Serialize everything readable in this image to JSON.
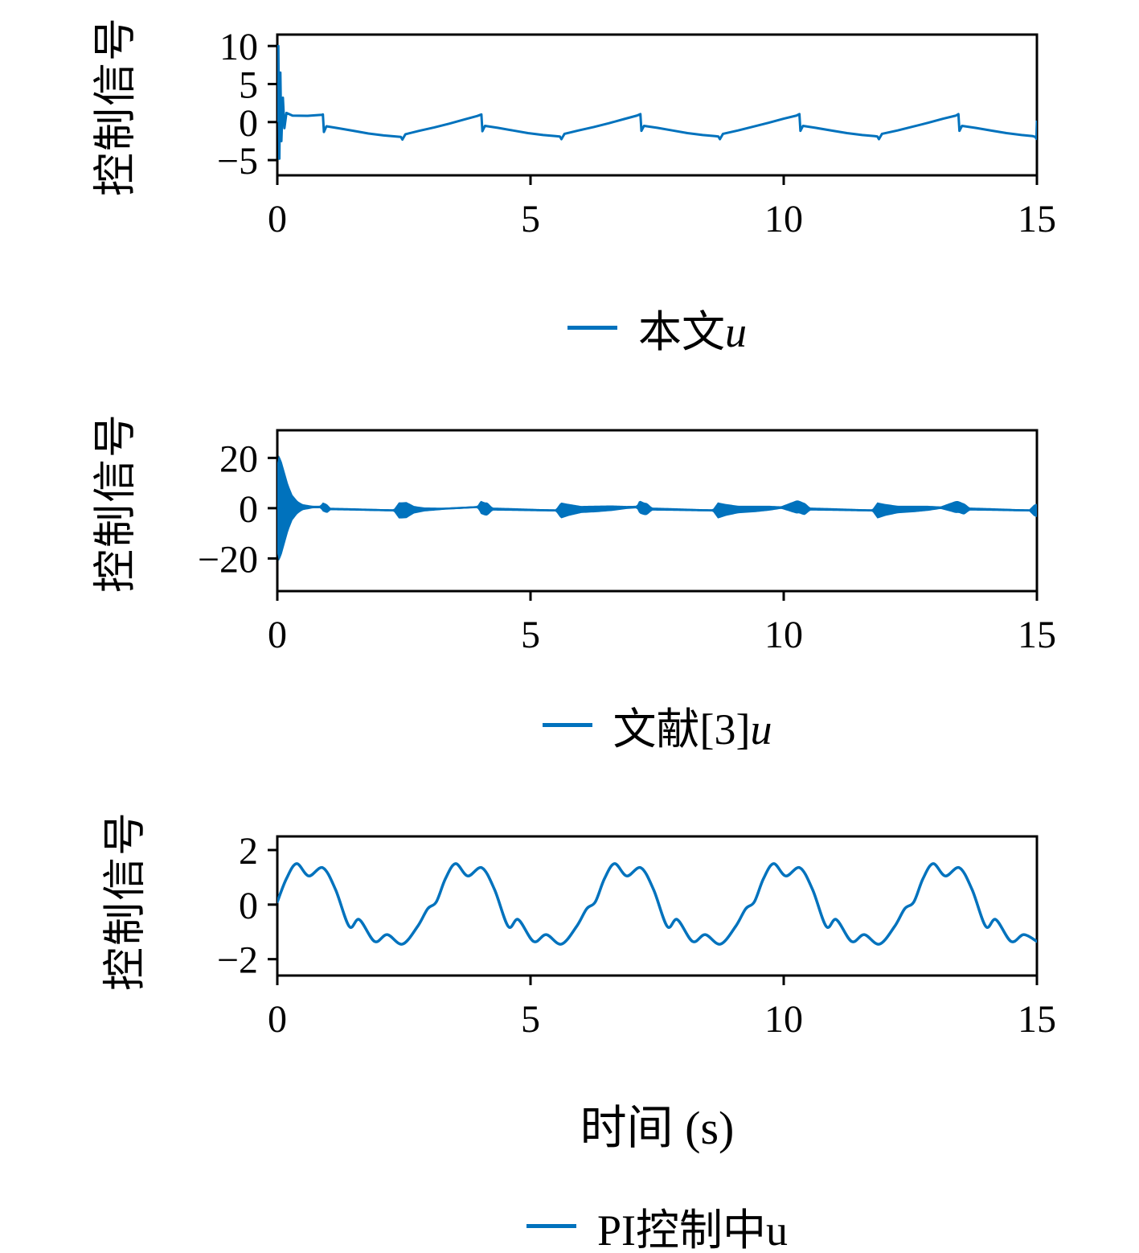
{
  "figure": {
    "background": "#ffffff",
    "accent_color": "#0072BD",
    "axis_color": "#000000",
    "xlabel": "时间 (s)"
  },
  "legends": [
    {
      "prefix": "本文",
      "math": "u"
    },
    {
      "prefix": "文献[3]",
      "math": "u"
    },
    {
      "prefix": "PI控制中u",
      "math": ""
    }
  ],
  "chart_data": [
    {
      "type": "line",
      "ylabel": "控制信号",
      "xlabel": "",
      "xlim": [
        0,
        15
      ],
      "ylim": [
        -7,
        11.5
      ],
      "xticks": [
        0,
        5,
        10,
        15
      ],
      "yticks": [
        10,
        5,
        0,
        -5
      ],
      "grid": false,
      "legend": "本文u",
      "legend_position": "below",
      "series": [
        {
          "name": "本文u",
          "color": "#0072BD",
          "points": [
            [
              0,
              0
            ],
            [
              0.02,
              10
            ],
            [
              0.04,
              -4.8
            ],
            [
              0.06,
              6.5
            ],
            [
              0.08,
              -2.5
            ],
            [
              0.11,
              3.2
            ],
            [
              0.14,
              -0.8
            ],
            [
              0.18,
              1.2
            ],
            [
              0.3,
              0.85
            ],
            [
              0.6,
              0.82
            ],
            [
              0.88,
              0.95
            ],
            [
              0.9,
              1.0
            ],
            [
              0.92,
              -1.3
            ],
            [
              0.97,
              -0.55
            ],
            [
              1.2,
              -0.8
            ],
            [
              1.5,
              -1.15
            ],
            [
              1.8,
              -1.5
            ],
            [
              2.1,
              -1.75
            ],
            [
              2.35,
              -1.9
            ],
            [
              2.44,
              -1.95
            ],
            [
              2.47,
              -2.3
            ],
            [
              2.53,
              -1.6
            ],
            [
              2.8,
              -1.15
            ],
            [
              3.1,
              -0.7
            ],
            [
              3.4,
              -0.2
            ],
            [
              3.7,
              0.35
            ],
            [
              3.95,
              0.8
            ],
            [
              4.03,
              1.0
            ],
            [
              4.05,
              -1.2
            ],
            [
              4.1,
              -0.5
            ],
            [
              4.35,
              -0.75
            ],
            [
              4.65,
              -1.1
            ],
            [
              4.95,
              -1.45
            ],
            [
              5.25,
              -1.7
            ],
            [
              5.5,
              -1.85
            ],
            [
              5.58,
              -1.9
            ],
            [
              5.61,
              -2.25
            ],
            [
              5.67,
              -1.55
            ],
            [
              5.95,
              -1.1
            ],
            [
              6.25,
              -0.65
            ],
            [
              6.55,
              -0.15
            ],
            [
              6.85,
              0.4
            ],
            [
              7.1,
              0.85
            ],
            [
              7.17,
              1.05
            ],
            [
              7.19,
              -1.15
            ],
            [
              7.24,
              -0.5
            ],
            [
              7.5,
              -0.75
            ],
            [
              7.8,
              -1.1
            ],
            [
              8.1,
              -1.45
            ],
            [
              8.4,
              -1.7
            ],
            [
              8.65,
              -1.85
            ],
            [
              8.71,
              -1.9
            ],
            [
              8.74,
              -2.25
            ],
            [
              8.8,
              -1.55
            ],
            [
              9.1,
              -1.1
            ],
            [
              9.4,
              -0.6
            ],
            [
              9.7,
              -0.1
            ],
            [
              10.0,
              0.45
            ],
            [
              10.25,
              0.85
            ],
            [
              10.31,
              1.05
            ],
            [
              10.33,
              -1.15
            ],
            [
              10.38,
              -0.5
            ],
            [
              10.65,
              -0.78
            ],
            [
              10.95,
              -1.12
            ],
            [
              11.25,
              -1.45
            ],
            [
              11.55,
              -1.7
            ],
            [
              11.8,
              -1.85
            ],
            [
              11.85,
              -1.9
            ],
            [
              11.88,
              -2.25
            ],
            [
              11.94,
              -1.55
            ],
            [
              12.25,
              -1.1
            ],
            [
              12.55,
              -0.6
            ],
            [
              12.85,
              -0.1
            ],
            [
              13.15,
              0.45
            ],
            [
              13.4,
              0.85
            ],
            [
              13.45,
              1.05
            ],
            [
              13.47,
              -1.15
            ],
            [
              13.52,
              -0.5
            ],
            [
              13.8,
              -0.78
            ],
            [
              14.1,
              -1.12
            ],
            [
              14.4,
              -1.45
            ],
            [
              14.7,
              -1.7
            ],
            [
              14.92,
              -1.85
            ],
            [
              14.97,
              -1.95
            ],
            [
              14.99,
              -2.2
            ],
            [
              15,
              0.2
            ]
          ]
        }
      ]
    },
    {
      "type": "line-band",
      "ylabel": "控制信号",
      "xlabel": "",
      "xlim": [
        0,
        15
      ],
      "ylim": [
        -33,
        31
      ],
      "xticks": [
        0,
        5,
        10,
        15
      ],
      "yticks": [
        20,
        0,
        -20
      ],
      "grid": false,
      "legend": "文献[3]u",
      "legend_position": "below",
      "series": [
        {
          "name": "文献[3]u",
          "color": "#0072BD",
          "mean": [
            [
              0,
              0
            ],
            [
              0.5,
              0.4
            ],
            [
              0.9,
              0.5
            ],
            [
              1.0,
              -0.3
            ],
            [
              1.5,
              -0.5
            ],
            [
              2.1,
              -0.8
            ],
            [
              2.45,
              -0.9
            ],
            [
              2.6,
              -0.7
            ],
            [
              3.2,
              -0.3
            ],
            [
              3.8,
              0.3
            ],
            [
              4.0,
              0.5
            ],
            [
              4.1,
              -0.3
            ],
            [
              4.6,
              -0.5
            ],
            [
              5.2,
              -0.8
            ],
            [
              5.6,
              -0.9
            ],
            [
              5.75,
              -0.7
            ],
            [
              6.3,
              -0.3
            ],
            [
              6.9,
              0.3
            ],
            [
              7.15,
              0.5
            ],
            [
              7.25,
              -0.3
            ],
            [
              7.75,
              -0.5
            ],
            [
              8.35,
              -0.8
            ],
            [
              8.72,
              -0.9
            ],
            [
              8.85,
              -0.7
            ],
            [
              9.45,
              -0.3
            ],
            [
              10.0,
              0.3
            ],
            [
              10.3,
              0.5
            ],
            [
              10.4,
              -0.3
            ],
            [
              10.9,
              -0.5
            ],
            [
              11.5,
              -0.8
            ],
            [
              11.86,
              -0.9
            ],
            [
              12.0,
              -0.7
            ],
            [
              12.6,
              -0.3
            ],
            [
              13.2,
              0.3
            ],
            [
              13.45,
              0.5
            ],
            [
              13.55,
              -0.3
            ],
            [
              14.05,
              -0.5
            ],
            [
              14.6,
              -0.8
            ],
            [
              15,
              -0.9
            ]
          ],
          "envelope": [
            [
              0,
              18
            ],
            [
              0.03,
              21
            ],
            [
              0.08,
              19
            ],
            [
              0.15,
              14
            ],
            [
              0.22,
              9
            ],
            [
              0.3,
              5
            ],
            [
              0.4,
              2.5
            ],
            [
              0.5,
              1.2
            ],
            [
              0.7,
              0.5
            ],
            [
              0.85,
              0.5
            ],
            [
              0.9,
              1.8
            ],
            [
              0.98,
              1.8
            ],
            [
              1.05,
              0.5
            ],
            [
              2.3,
              0.4
            ],
            [
              2.4,
              3.2
            ],
            [
              2.55,
              3.2
            ],
            [
              2.7,
              1.5
            ],
            [
              2.9,
              0.8
            ],
            [
              3.3,
              0.4
            ],
            [
              3.95,
              0.4
            ],
            [
              4.02,
              2.6
            ],
            [
              4.15,
              2.6
            ],
            [
              4.25,
              0.6
            ],
            [
              5.5,
              0.4
            ],
            [
              5.6,
              3.2
            ],
            [
              5.75,
              2.4
            ],
            [
              6.0,
              1.4
            ],
            [
              6.3,
              1.3
            ],
            [
              6.6,
              1.1
            ],
            [
              6.9,
              0.6
            ],
            [
              7.1,
              0.5
            ],
            [
              7.15,
              2.6
            ],
            [
              7.3,
              2.4
            ],
            [
              7.4,
              0.6
            ],
            [
              8.6,
              0.4
            ],
            [
              8.7,
              3.2
            ],
            [
              8.85,
              2.4
            ],
            [
              9.1,
              1.5
            ],
            [
              9.4,
              1.3
            ],
            [
              9.7,
              1.0
            ],
            [
              9.95,
              0.5
            ],
            [
              10.25,
              2.6
            ],
            [
              10.42,
              2.4
            ],
            [
              10.52,
              0.6
            ],
            [
              11.75,
              0.4
            ],
            [
              11.85,
              3.2
            ],
            [
              12.0,
              2.4
            ],
            [
              12.25,
              1.5
            ],
            [
              12.55,
              1.3
            ],
            [
              12.85,
              1.0
            ],
            [
              13.1,
              0.5
            ],
            [
              13.4,
              2.4
            ],
            [
              13.57,
              2.2
            ],
            [
              13.67,
              0.6
            ],
            [
              14.85,
              0.4
            ],
            [
              14.95,
              2.4
            ],
            [
              15,
              2.6
            ]
          ]
        }
      ]
    },
    {
      "type": "line",
      "ylabel": "控制信号",
      "xlabel": "时间 (s)",
      "xlim": [
        0,
        15
      ],
      "ylim": [
        -2.6,
        2.5
      ],
      "xticks": [
        0,
        5,
        10,
        15
      ],
      "yticks": [
        2,
        0,
        -2
      ],
      "grid": false,
      "legend": "PI控制中u",
      "legend_position": "below",
      "series": [
        {
          "name": "PI控制中u",
          "color": "#0072BD",
          "smooth": true,
          "points": [
            [
              0,
              0.1
            ],
            [
              0.18,
              0.95
            ],
            [
              0.38,
              1.5
            ],
            [
              0.62,
              1.05
            ],
            [
              0.9,
              1.35
            ],
            [
              1.15,
              0.55
            ],
            [
              1.42,
              -0.8
            ],
            [
              1.62,
              -0.55
            ],
            [
              1.92,
              -1.35
            ],
            [
              2.17,
              -1.1
            ],
            [
              2.47,
              -1.45
            ],
            [
              2.77,
              -0.8
            ],
            [
              2.97,
              -0.15
            ],
            [
              3.14,
              0.1
            ],
            [
              3.32,
              0.95
            ],
            [
              3.52,
              1.5
            ],
            [
              3.76,
              1.05
            ],
            [
              4.04,
              1.35
            ],
            [
              4.29,
              0.55
            ],
            [
              4.56,
              -0.8
            ],
            [
              4.76,
              -0.55
            ],
            [
              5.06,
              -1.35
            ],
            [
              5.31,
              -1.1
            ],
            [
              5.61,
              -1.45
            ],
            [
              5.91,
              -0.8
            ],
            [
              6.11,
              -0.15
            ],
            [
              6.28,
              0.1
            ],
            [
              6.46,
              0.95
            ],
            [
              6.66,
              1.5
            ],
            [
              6.9,
              1.05
            ],
            [
              7.18,
              1.35
            ],
            [
              7.43,
              0.55
            ],
            [
              7.7,
              -0.8
            ],
            [
              7.9,
              -0.55
            ],
            [
              8.2,
              -1.35
            ],
            [
              8.45,
              -1.1
            ],
            [
              8.75,
              -1.45
            ],
            [
              9.05,
              -0.8
            ],
            [
              9.25,
              -0.15
            ],
            [
              9.42,
              0.1
            ],
            [
              9.6,
              0.95
            ],
            [
              9.8,
              1.5
            ],
            [
              10.04,
              1.05
            ],
            [
              10.32,
              1.35
            ],
            [
              10.57,
              0.55
            ],
            [
              10.84,
              -0.8
            ],
            [
              11.04,
              -0.55
            ],
            [
              11.34,
              -1.35
            ],
            [
              11.59,
              -1.1
            ],
            [
              11.89,
              -1.45
            ],
            [
              12.19,
              -0.8
            ],
            [
              12.39,
              -0.15
            ],
            [
              12.57,
              0.1
            ],
            [
              12.75,
              0.95
            ],
            [
              12.95,
              1.5
            ],
            [
              13.19,
              1.05
            ],
            [
              13.47,
              1.35
            ],
            [
              13.72,
              0.55
            ],
            [
              13.99,
              -0.8
            ],
            [
              14.19,
              -0.55
            ],
            [
              14.49,
              -1.35
            ],
            [
              14.74,
              -1.1
            ],
            [
              15,
              -1.35
            ]
          ]
        }
      ]
    }
  ]
}
